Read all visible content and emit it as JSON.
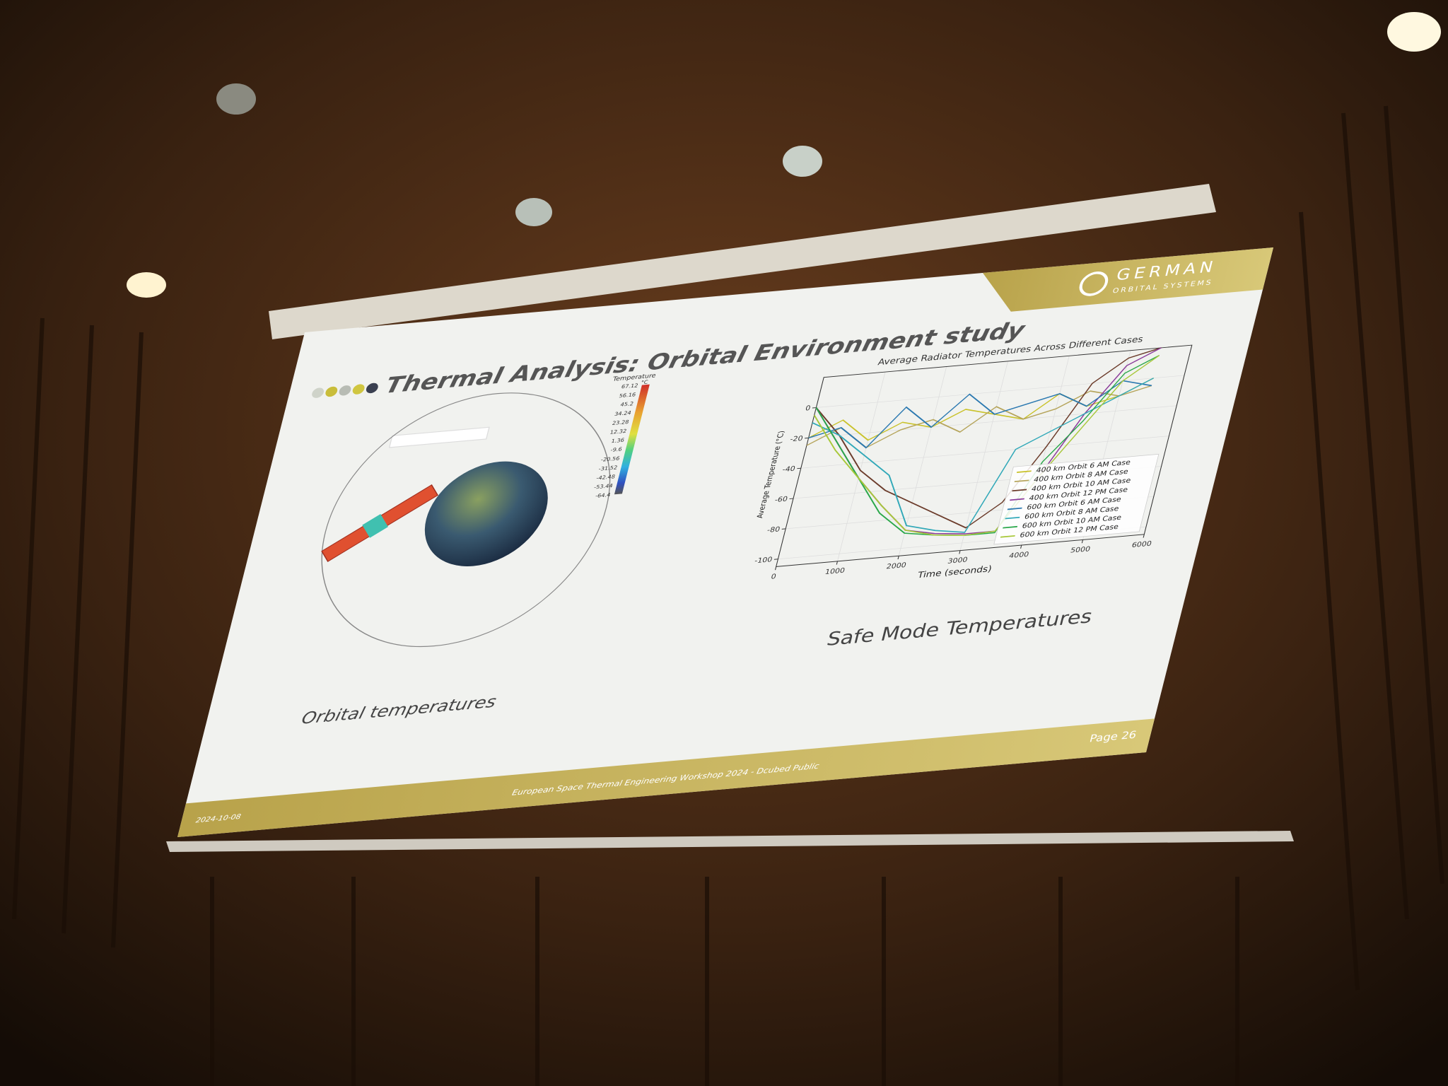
{
  "slide": {
    "title": "Thermal Analysis: Orbital Environment study",
    "logo": {
      "name": "GERMAN",
      "subtitle": "ORBITAL SYSTEMS"
    },
    "left_caption": "Orbital temperatures",
    "right_caption": "Safe Mode Temperatures",
    "colorbar": {
      "title": "Temperature",
      "unit": "°C",
      "labels": [
        67.12,
        56.16,
        45.2,
        34.24,
        23.28,
        12.32,
        1.36,
        -9.6,
        -20.56,
        -31.52,
        -42.48,
        -53.44,
        -64.4
      ]
    },
    "footer": {
      "date": "2024-10-08",
      "text": "European Space Thermal Engineering Workshop 2024 - Dcubed Public",
      "page": "Page 26"
    }
  },
  "chart_data": {
    "type": "line",
    "title": "Average Radiator Temperatures Across Different Cases",
    "x_label": "Time (seconds)",
    "y_label": "Average Temperature (°C)",
    "x": [
      0,
      500,
      1000,
      1500,
      2000,
      2500,
      3000,
      3500,
      4000,
      4500,
      5000,
      5500
    ],
    "series": [
      {
        "name": "400 km Orbit 6 AM Case",
        "color": "#c9c22a",
        "values": [
          -20,
          -10,
          -25,
          -15,
          -20,
          -10,
          -15,
          -20,
          -5,
          -15,
          -10,
          0
        ]
      },
      {
        "name": "400 km Orbit 8 AM Case",
        "color": "#b5a45a",
        "values": [
          -25,
          -15,
          -30,
          -20,
          -15,
          -25,
          -10,
          -20,
          -15,
          -5,
          -10,
          -5
        ]
      },
      {
        "name": "400 km Orbit 10 AM Case",
        "color": "#6b3b2a",
        "values": [
          0,
          -20,
          -45,
          -60,
          -70,
          -80,
          -90,
          -75,
          -40,
          0,
          15,
          20
        ]
      },
      {
        "name": "400 km Orbit 12 PM Case",
        "color": "#8a3a9a",
        "values": [
          0,
          -25,
          -50,
          -70,
          -88,
          -92,
          -94,
          -94,
          -60,
          -20,
          10,
          20
        ]
      },
      {
        "name": "600 km Orbit 6 AM Case",
        "color": "#2a78b0",
        "values": [
          -20,
          -15,
          -30,
          -5,
          -20,
          0,
          -15,
          -10,
          -5,
          -15,
          0,
          -5
        ]
      },
      {
        "name": "600 km Orbit 8 AM Case",
        "color": "#30a8b8",
        "values": [
          -10,
          -20,
          -35,
          -50,
          -85,
          -90,
          -93,
          -40,
          -30,
          -20,
          -10,
          0
        ]
      },
      {
        "name": "600 km Orbit 10 AM Case",
        "color": "#2aa84a",
        "values": [
          0,
          -25,
          -50,
          -75,
          -90,
          -93,
          -95,
          -95,
          -50,
          -25,
          5,
          15
        ]
      },
      {
        "name": "600 km Orbit 12 PM Case",
        "color": "#a8c83a",
        "values": [
          -5,
          -30,
          -50,
          -70,
          -88,
          -93,
          -95,
          -94,
          -60,
          -30,
          0,
          15
        ]
      }
    ],
    "xlim": [
      0,
      6000
    ],
    "xticks": [
      0,
      1000,
      2000,
      3000,
      4000,
      5000,
      6000
    ],
    "ylim": [
      -105,
      20
    ],
    "yticks": [
      -100,
      -80,
      -60,
      -40,
      -20,
      0
    ],
    "grid": true,
    "legend": "lower right"
  }
}
